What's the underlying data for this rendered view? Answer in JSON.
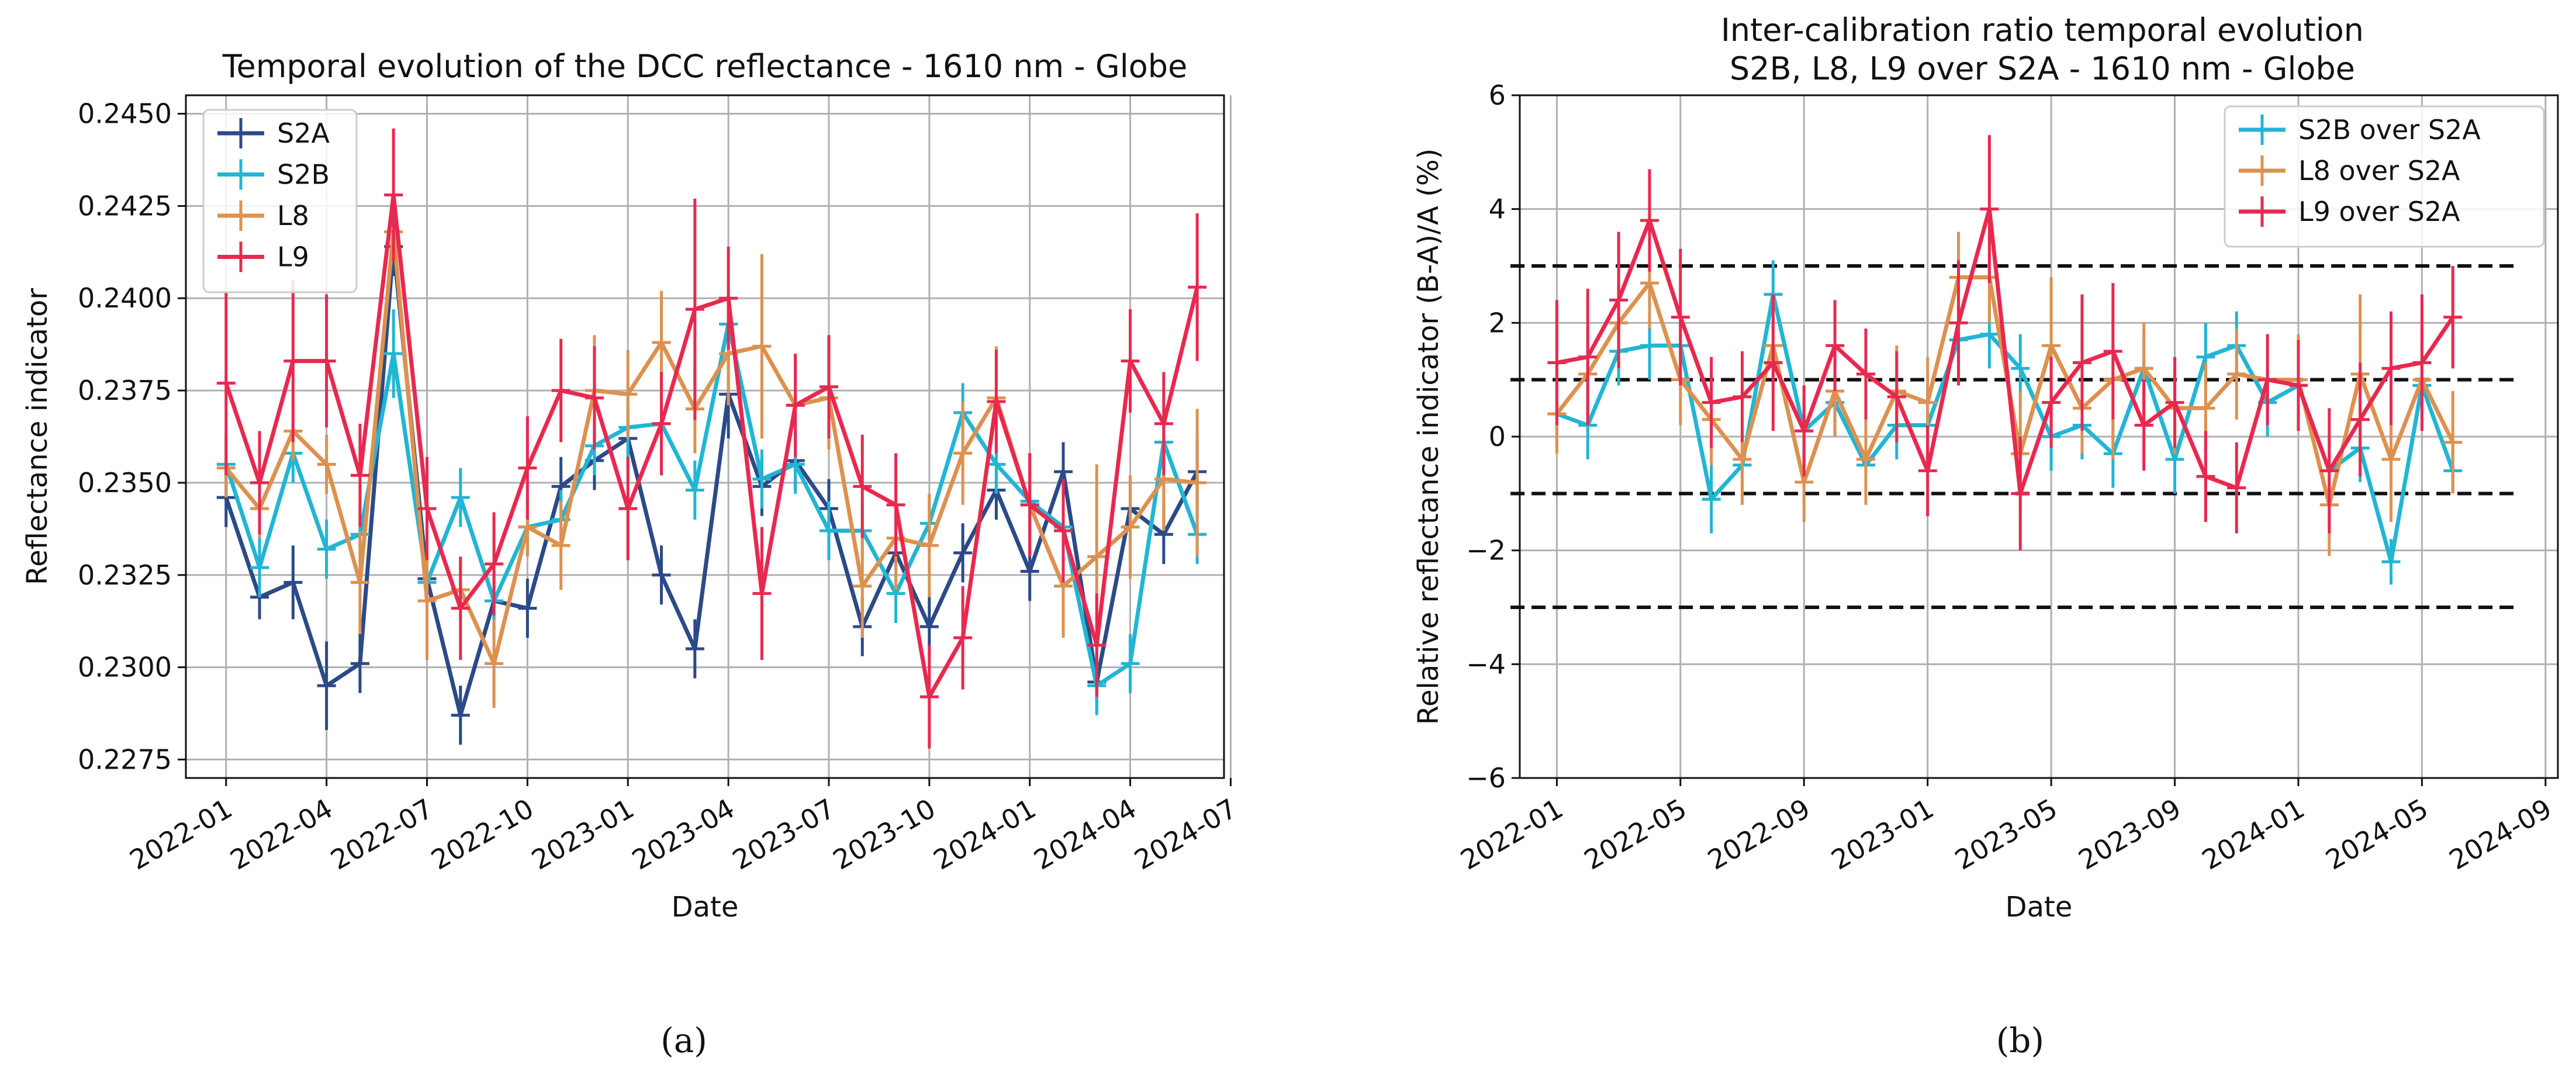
{
  "chart_data": [
    {
      "type": "line",
      "panel_label": "(a)",
      "title": "Temporal evolution of the DCC reflectance - 1610 nm - Globe",
      "xlabel": "Date",
      "ylabel": "Reflectance indicator",
      "xlim": [
        -1.2,
        29.8
      ],
      "ylim": [
        0.227,
        0.2455
      ],
      "grid": true,
      "legend_position": "top-left",
      "x_ticks": [
        {
          "value": 0,
          "label": "2022-01"
        },
        {
          "value": 3,
          "label": "2022-04"
        },
        {
          "value": 6,
          "label": "2022-07"
        },
        {
          "value": 9,
          "label": "2022-10"
        },
        {
          "value": 12,
          "label": "2023-01"
        },
        {
          "value": 15,
          "label": "2023-04"
        },
        {
          "value": 18,
          "label": "2023-07"
        },
        {
          "value": 21,
          "label": "2023-10"
        },
        {
          "value": 24,
          "label": "2024-01"
        },
        {
          "value": 27,
          "label": "2024-04"
        },
        {
          "value": 30,
          "label": "2024-07"
        }
      ],
      "y_ticks": [
        {
          "value": 0.2275,
          "label": "0.2275"
        },
        {
          "value": 0.23,
          "label": "0.2300"
        },
        {
          "value": 0.2325,
          "label": "0.2325"
        },
        {
          "value": 0.235,
          "label": "0.2350"
        },
        {
          "value": 0.2375,
          "label": "0.2375"
        },
        {
          "value": 0.24,
          "label": "0.2400"
        },
        {
          "value": 0.2425,
          "label": "0.2425"
        },
        {
          "value": 0.245,
          "label": "0.2450"
        }
      ],
      "series": [
        {
          "name": "S2A",
          "color": "#2b4a87",
          "x": [
            0,
            1,
            2,
            3,
            4,
            5,
            6,
            7,
            8,
            9,
            10,
            11,
            12,
            13,
            14,
            15,
            16,
            17,
            18,
            19,
            20,
            21,
            22,
            23,
            24,
            25,
            26,
            27,
            28,
            29
          ],
          "values": [
            0.2346,
            0.2319,
            0.2323,
            0.2295,
            0.2301,
            0.2414,
            0.2324,
            0.2287,
            0.2318,
            0.2316,
            0.2349,
            0.2356,
            0.2362,
            0.2325,
            0.2305,
            0.2374,
            0.2349,
            0.2356,
            0.2343,
            0.2311,
            0.2331,
            0.2311,
            0.2331,
            0.2348,
            0.2326,
            0.2353,
            0.2296,
            0.2343,
            0.2336,
            0.2353
          ],
          "err": [
            0.0008,
            0.0006,
            0.001,
            0.0012,
            0.0008,
            0.0008,
            0.0008,
            0.0008,
            0.0008,
            0.0008,
            0.0008,
            0.0008,
            0.0008,
            0.0008,
            0.0008,
            0.0012,
            0.0008,
            0.0008,
            0.0008,
            0.0008,
            0.0008,
            0.0008,
            0.0008,
            0.0008,
            0.0008,
            0.0008,
            0.0008,
            0.0008,
            0.0008,
            0.0009
          ]
        },
        {
          "name": "S2B",
          "color": "#22b5d4",
          "x": [
            0,
            1,
            2,
            3,
            4,
            5,
            6,
            7,
            8,
            9,
            10,
            11,
            12,
            13,
            14,
            15,
            16,
            17,
            18,
            19,
            20,
            21,
            22,
            23,
            24,
            25,
            26,
            27,
            28,
            29
          ],
          "values": [
            0.2355,
            0.2327,
            0.2358,
            0.2332,
            0.2336,
            0.2385,
            0.2323,
            0.2346,
            0.2318,
            0.2338,
            0.234,
            0.236,
            0.2365,
            0.2366,
            0.2348,
            0.2393,
            0.2351,
            0.2355,
            0.2337,
            0.2337,
            0.232,
            0.2339,
            0.2369,
            0.2355,
            0.2345,
            0.2338,
            0.2295,
            0.2301,
            0.2361,
            0.2336
          ],
          "err": [
            0.0008,
            0.0008,
            0.0008,
            0.0008,
            0.0008,
            0.0012,
            0.0008,
            0.0008,
            0.0008,
            0.0008,
            0.0008,
            0.0008,
            0.0008,
            0.0008,
            0.0008,
            0.0012,
            0.0008,
            0.0008,
            0.0008,
            0.0008,
            0.0008,
            0.0008,
            0.0008,
            0.0008,
            0.0008,
            0.0008,
            0.0008,
            0.0008,
            0.0008,
            0.0008
          ]
        },
        {
          "name": "L8",
          "color": "#dd9150",
          "x": [
            0,
            1,
            2,
            3,
            4,
            5,
            6,
            7,
            8,
            9,
            10,
            11,
            12,
            13,
            14,
            15,
            16,
            17,
            18,
            19,
            20,
            21,
            22,
            23,
            24,
            25,
            26,
            27,
            28,
            29
          ],
          "values": [
            0.2354,
            0.2343,
            0.2364,
            0.2355,
            0.2323,
            0.2418,
            0.2318,
            0.2321,
            0.2301,
            0.2338,
            0.2333,
            0.2375,
            0.2374,
            0.2388,
            0.237,
            0.2385,
            0.2387,
            0.2371,
            0.2373,
            0.2322,
            0.2335,
            0.2333,
            0.2358,
            0.2373,
            0.2344,
            0.2322,
            0.233,
            0.2338,
            0.2351,
            0.235
          ],
          "err": [
            0.0008,
            0.0008,
            0.0008,
            0.0008,
            0.0014,
            0.0008,
            0.0016,
            0.0008,
            0.0012,
            0.0008,
            0.0012,
            0.0015,
            0.0012,
            0.0014,
            0.0012,
            0.0014,
            0.0025,
            0.0014,
            0.0014,
            0.0014,
            0.0014,
            0.0014,
            0.0014,
            0.0014,
            0.0014,
            0.0014,
            0.0025,
            0.0014,
            0.0014,
            0.002
          ]
        },
        {
          "name": "L9",
          "color": "#e8294f",
          "x": [
            0,
            1,
            2,
            3,
            4,
            5,
            6,
            7,
            8,
            9,
            10,
            11,
            12,
            13,
            14,
            15,
            16,
            17,
            18,
            19,
            20,
            21,
            22,
            23,
            24,
            25,
            26,
            27,
            28,
            29
          ],
          "values": [
            0.2377,
            0.235,
            0.2383,
            0.2383,
            0.2352,
            0.2428,
            0.2343,
            0.2316,
            0.2328,
            0.2354,
            0.2375,
            0.2373,
            0.2343,
            0.2366,
            0.2397,
            0.24,
            0.232,
            0.2371,
            0.2376,
            0.2349,
            0.2344,
            0.2292,
            0.2308,
            0.2372,
            0.2344,
            0.2337,
            0.2306,
            0.2383,
            0.2366,
            0.2403
          ],
          "err": [
            0.0025,
            0.0014,
            0.0022,
            0.0018,
            0.0014,
            0.0018,
            0.0014,
            0.0014,
            0.0014,
            0.0014,
            0.0014,
            0.0014,
            0.0014,
            0.0014,
            0.003,
            0.0014,
            0.0018,
            0.0014,
            0.0014,
            0.0014,
            0.0014,
            0.0014,
            0.0014,
            0.0014,
            0.0014,
            0.0014,
            0.0014,
            0.0014,
            0.0014,
            0.002
          ]
        }
      ]
    },
    {
      "type": "line",
      "panel_label": "(b)",
      "title": "Inter-calibration ratio temporal evolution",
      "subtitle": "S2B, L8, L9 over S2A - 1610 nm - Globe",
      "xlabel": "Date",
      "ylabel": "Relative reflectance indicator (B-A)/A (%)",
      "xlim": [
        -1.2,
        32.4
      ],
      "ylim": [
        -6,
        6
      ],
      "grid": true,
      "legend_position": "top-right",
      "x_ticks": [
        {
          "value": 0,
          "label": "2022-01"
        },
        {
          "value": 4,
          "label": "2022-05"
        },
        {
          "value": 8,
          "label": "2022-09"
        },
        {
          "value": 12,
          "label": "2023-01"
        },
        {
          "value": 16,
          "label": "2023-05"
        },
        {
          "value": 20,
          "label": "2023-09"
        },
        {
          "value": 24,
          "label": "2024-01"
        },
        {
          "value": 28,
          "label": "2024-05"
        },
        {
          "value": 32,
          "label": "2024-09"
        }
      ],
      "y_ticks": [
        {
          "value": -6,
          "label": "−6"
        },
        {
          "value": -4,
          "label": "−4"
        },
        {
          "value": -2,
          "label": "−2"
        },
        {
          "value": 0,
          "label": "0"
        },
        {
          "value": 2,
          "label": "2"
        },
        {
          "value": 4,
          "label": "4"
        },
        {
          "value": 6,
          "label": "6"
        }
      ],
      "reference_lines": [
        {
          "y": 3,
          "x_range": [
            -1.5,
            31
          ]
        },
        {
          "y": 1,
          "x_range": [
            -1.5,
            31
          ]
        },
        {
          "y": -1,
          "x_range": [
            -1.5,
            31
          ]
        },
        {
          "y": -3,
          "x_range": [
            -1.5,
            31
          ]
        }
      ],
      "series": [
        {
          "name": "S2B over S2A",
          "color": "#22b5d4",
          "x": [
            0,
            1,
            2,
            3,
            4,
            5,
            6,
            7,
            8,
            9,
            10,
            11,
            12,
            13,
            14,
            15,
            16,
            17,
            18,
            19,
            20,
            21,
            22,
            23,
            24,
            25,
            26,
            27,
            28,
            29
          ],
          "values": [
            0.4,
            0.2,
            1.5,
            1.6,
            1.6,
            -1.1,
            -0.5,
            2.5,
            0.1,
            0.6,
            -0.5,
            0.2,
            0.2,
            1.7,
            1.8,
            1.2,
            0.0,
            0.2,
            -0.3,
            1.2,
            -0.4,
            1.4,
            1.6,
            0.6,
            0.9,
            -0.6,
            -0.2,
            -2.2,
            0.9,
            -0.6
          ],
          "err": [
            0.6,
            0.6,
            0.6,
            0.6,
            0.6,
            0.6,
            0.6,
            0.6,
            0.6,
            0.6,
            0.6,
            0.6,
            0.6,
            0.6,
            0.6,
            0.6,
            0.6,
            0.6,
            0.6,
            0.6,
            0.6,
            0.6,
            0.6,
            0.6,
            0.6,
            0.6,
            0.6,
            0.4,
            0.6,
            0.4
          ]
        },
        {
          "name": "L8 over S2A",
          "color": "#dd9150",
          "x": [
            0,
            1,
            2,
            3,
            4,
            5,
            6,
            7,
            8,
            9,
            10,
            11,
            12,
            13,
            14,
            15,
            16,
            17,
            18,
            19,
            20,
            21,
            22,
            23,
            24,
            25,
            26,
            27,
            28,
            29
          ],
          "values": [
            0.4,
            1.1,
            2.0,
            2.7,
            1.0,
            0.3,
            -0.4,
            1.6,
            -0.8,
            0.8,
            -0.4,
            0.8,
            0.6,
            2.8,
            2.8,
            -0.3,
            1.6,
            0.5,
            1.0,
            1.2,
            0.5,
            0.5,
            1.1,
            1.0,
            1.0,
            -1.2,
            1.1,
            -0.4,
            1.0,
            -0.1
          ],
          "err": [
            0.7,
            0.8,
            0.8,
            0.8,
            0.8,
            0.8,
            0.8,
            0.8,
            0.7,
            0.8,
            0.8,
            0.8,
            0.8,
            0.8,
            0.8,
            1.1,
            1.2,
            0.8,
            1.4,
            0.8,
            0.8,
            0.8,
            0.8,
            0.8,
            0.8,
            0.9,
            1.4,
            1.1,
            0.9,
            0.9
          ]
        },
        {
          "name": "L9 over S2A",
          "color": "#e8294f",
          "x": [
            0,
            1,
            2,
            3,
            4,
            5,
            6,
            7,
            8,
            9,
            10,
            11,
            12,
            13,
            14,
            15,
            16,
            17,
            18,
            19,
            20,
            21,
            22,
            23,
            24,
            25,
            26,
            27,
            28,
            29
          ],
          "values": [
            1.3,
            1.4,
            2.4,
            3.8,
            2.1,
            0.6,
            0.7,
            1.3,
            0.1,
            1.6,
            1.1,
            0.7,
            -0.6,
            2.0,
            4.0,
            -1.0,
            0.6,
            1.3,
            1.5,
            0.2,
            0.6,
            -0.7,
            -0.9,
            1.0,
            0.9,
            -0.6,
            0.3,
            1.2,
            1.3,
            2.1
          ],
          "err": [
            1.1,
            1.2,
            1.2,
            0.9,
            1.2,
            0.8,
            0.8,
            1.2,
            0.8,
            0.8,
            0.8,
            0.8,
            0.8,
            1.1,
            1.3,
            1.0,
            0.8,
            1.2,
            1.2,
            0.8,
            0.8,
            0.8,
            0.8,
            0.8,
            0.8,
            1.1,
            1.0,
            1.0,
            1.2,
            0.9
          ]
        }
      ]
    }
  ]
}
